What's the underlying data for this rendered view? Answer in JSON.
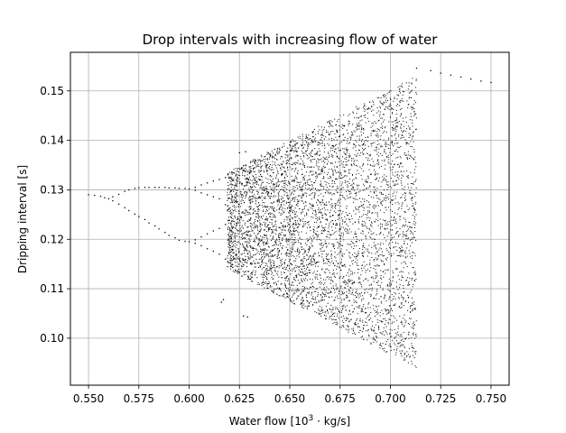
{
  "chart_data": {
    "type": "scatter",
    "title": "Drop intervals with increasing flow of water",
    "xlabel_prefix": "Water flow [10",
    "xlabel_exp": "3",
    "xlabel_suffix": " · kg/s]",
    "ylabel": "Dripping interval [s]",
    "xlim": [
      0.541,
      0.759
    ],
    "ylim": [
      0.0905,
      0.1578
    ],
    "x_ticks": [
      0.55,
      0.575,
      0.6,
      0.625,
      0.65,
      0.675,
      0.7,
      0.725,
      0.75
    ],
    "x_tick_labels": [
      "0.550",
      "0.575",
      "0.600",
      "0.625",
      "0.650",
      "0.675",
      "0.700",
      "0.725",
      "0.750"
    ],
    "y_ticks": [
      0.1,
      0.11,
      0.12,
      0.13,
      0.14,
      0.15
    ],
    "y_tick_labels": [
      "0.10",
      "0.11",
      "0.12",
      "0.13",
      "0.14",
      "0.15"
    ],
    "grid": true,
    "marker_color": "#000000",
    "series": [
      {
        "values": [
          [
            0.55,
            0.129
          ],
          [
            0.553,
            0.1289
          ],
          [
            0.556,
            0.1287
          ],
          [
            0.558,
            0.1284
          ],
          [
            0.56,
            0.1282
          ],
          [
            0.562,
            0.1286
          ],
          [
            0.562,
            0.1278
          ],
          [
            0.565,
            0.1291
          ],
          [
            0.565,
            0.1271
          ],
          [
            0.568,
            0.1297
          ],
          [
            0.568,
            0.1264
          ],
          [
            0.57,
            0.13
          ],
          [
            0.57,
            0.1258
          ],
          [
            0.573,
            0.1303
          ],
          [
            0.573,
            0.1251
          ],
          [
            0.575,
            0.1304
          ],
          [
            0.575,
            0.1246
          ],
          [
            0.578,
            0.1305
          ],
          [
            0.578,
            0.124
          ],
          [
            0.58,
            0.1305
          ],
          [
            0.58,
            0.1233
          ],
          [
            0.583,
            0.1305
          ],
          [
            0.583,
            0.1227
          ],
          [
            0.585,
            0.1305
          ],
          [
            0.585,
            0.1221
          ],
          [
            0.588,
            0.1305
          ],
          [
            0.588,
            0.1214
          ],
          [
            0.59,
            0.1304
          ],
          [
            0.59,
            0.1208
          ],
          [
            0.593,
            0.1304
          ],
          [
            0.593,
            0.1203
          ],
          [
            0.595,
            0.1303
          ],
          [
            0.595,
            0.1198
          ],
          [
            0.598,
            0.1303
          ],
          [
            0.598,
            0.1196
          ],
          [
            0.6,
            0.1302
          ],
          [
            0.6,
            0.1195
          ],
          [
            0.603,
            0.1305
          ],
          [
            0.603,
            0.1299
          ],
          [
            0.603,
            0.1199
          ],
          [
            0.603,
            0.1192
          ],
          [
            0.606,
            0.131
          ],
          [
            0.606,
            0.1294
          ],
          [
            0.606,
            0.1205
          ],
          [
            0.606,
            0.1187
          ],
          [
            0.609,
            0.1314
          ],
          [
            0.609,
            0.129
          ],
          [
            0.609,
            0.1211
          ],
          [
            0.609,
            0.1181
          ],
          [
            0.612,
            0.1318
          ],
          [
            0.612,
            0.1286
          ],
          [
            0.612,
            0.1217
          ],
          [
            0.612,
            0.1176
          ],
          [
            0.615,
            0.1321
          ],
          [
            0.615,
            0.1282
          ],
          [
            0.615,
            0.1222
          ],
          [
            0.615,
            0.117
          ],
          [
            0.618,
            0.1325
          ],
          [
            0.618,
            0.127
          ],
          [
            0.618,
            0.123
          ],
          [
            0.618,
            0.116
          ],
          [
            0.616,
            0.1073
          ],
          [
            0.617,
            0.1078
          ],
          [
            0.627,
            0.1045
          ],
          [
            0.629,
            0.1043
          ],
          [
            0.625,
            0.1375
          ],
          [
            0.628,
            0.1377
          ],
          [
            0.713,
            0.1546
          ],
          [
            0.72,
            0.1541
          ],
          [
            0.725,
            0.1536
          ],
          [
            0.73,
            0.1532
          ],
          [
            0.735,
            0.1528
          ],
          [
            0.74,
            0.1524
          ],
          [
            0.745,
            0.152
          ],
          [
            0.75,
            0.1517
          ]
        ]
      }
    ]
  }
}
